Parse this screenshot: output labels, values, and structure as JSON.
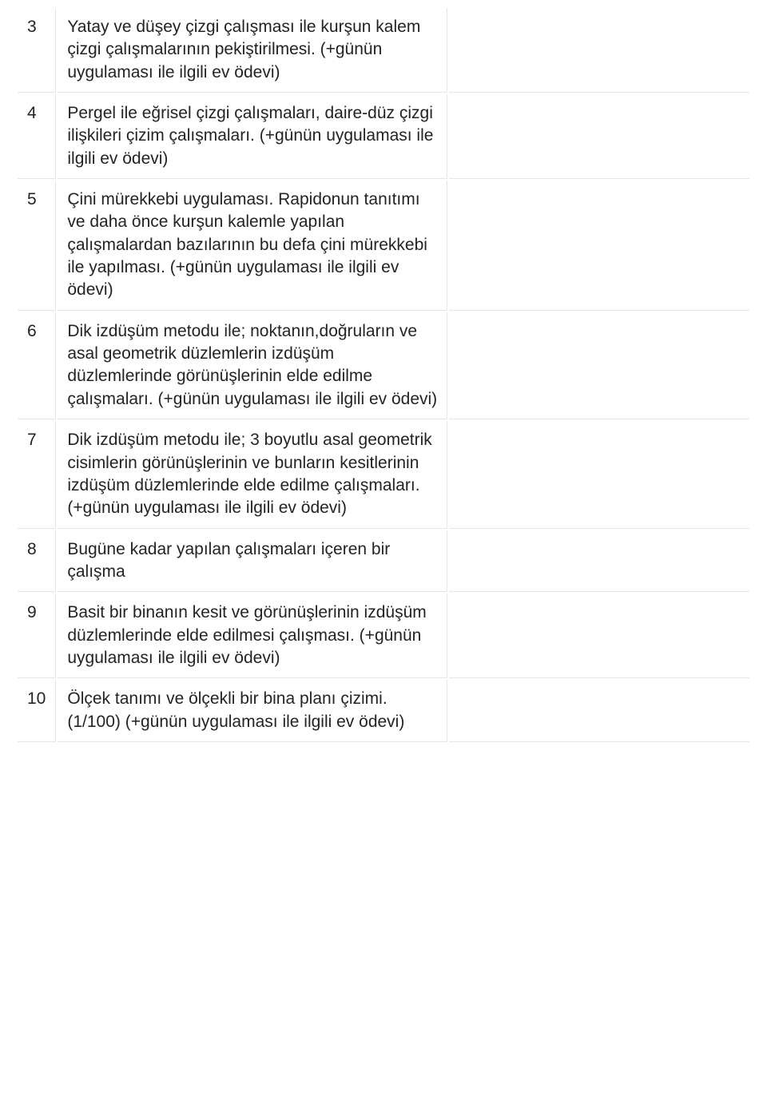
{
  "table": {
    "border_color": "#e6e6e6",
    "text_color": "#232323",
    "rows": [
      {
        "num": "3",
        "desc": "Yatay ve düşey çizgi çalışması ile kurşun kalem çizgi çalışmalarının pekiştirilmesi. (+günün uygulaması ile ilgili ev ödevi)"
      },
      {
        "num": "4",
        "desc": "Pergel ile eğrisel çizgi çalışmaları, daire-düz çizgi ilişkileri çizim çalışmaları. (+günün uygulaması ile ilgili ev ödevi)"
      },
      {
        "num": "5",
        "desc": "Çini mürekkebi uygulaması. Rapidonun tanıtımı ve daha önce kurşun kalemle yapılan çalışmalardan bazılarının bu defa çini mürekkebi ile yapılması. (+günün uygulaması ile ilgili ev ödevi)"
      },
      {
        "num": "6",
        "desc": "Dik izdüşüm metodu ile; noktanın,doğruların ve asal geometrik düzlemlerin izdüşüm düzlemlerinde görünüşlerinin elde edilme çalışmaları. (+günün uygulaması ile ilgili ev ödevi)"
      },
      {
        "num": "7",
        "desc": "Dik izdüşüm metodu ile; 3 boyutlu asal geometrik cisimlerin görünüşlerinin ve bunların kesitlerinin izdüşüm düzlemlerinde elde edilme çalışmaları. (+günün uygulaması ile ilgili ev ödevi)"
      },
      {
        "num": "8",
        "desc": "Bugüne kadar yapılan çalışmaları içeren bir çalışma"
      },
      {
        "num": "9",
        "desc": "Basit bir binanın kesit ve görünüşlerinin izdüşüm düzlemlerinde elde edilmesi çalışması. (+günün uygulaması ile ilgili ev ödevi)"
      },
      {
        "num": "10",
        "desc": "Ölçek tanımı ve ölçekli bir bina planı çizimi. (1/100) (+günün uygulaması ile ilgili ev ödevi)"
      }
    ]
  }
}
